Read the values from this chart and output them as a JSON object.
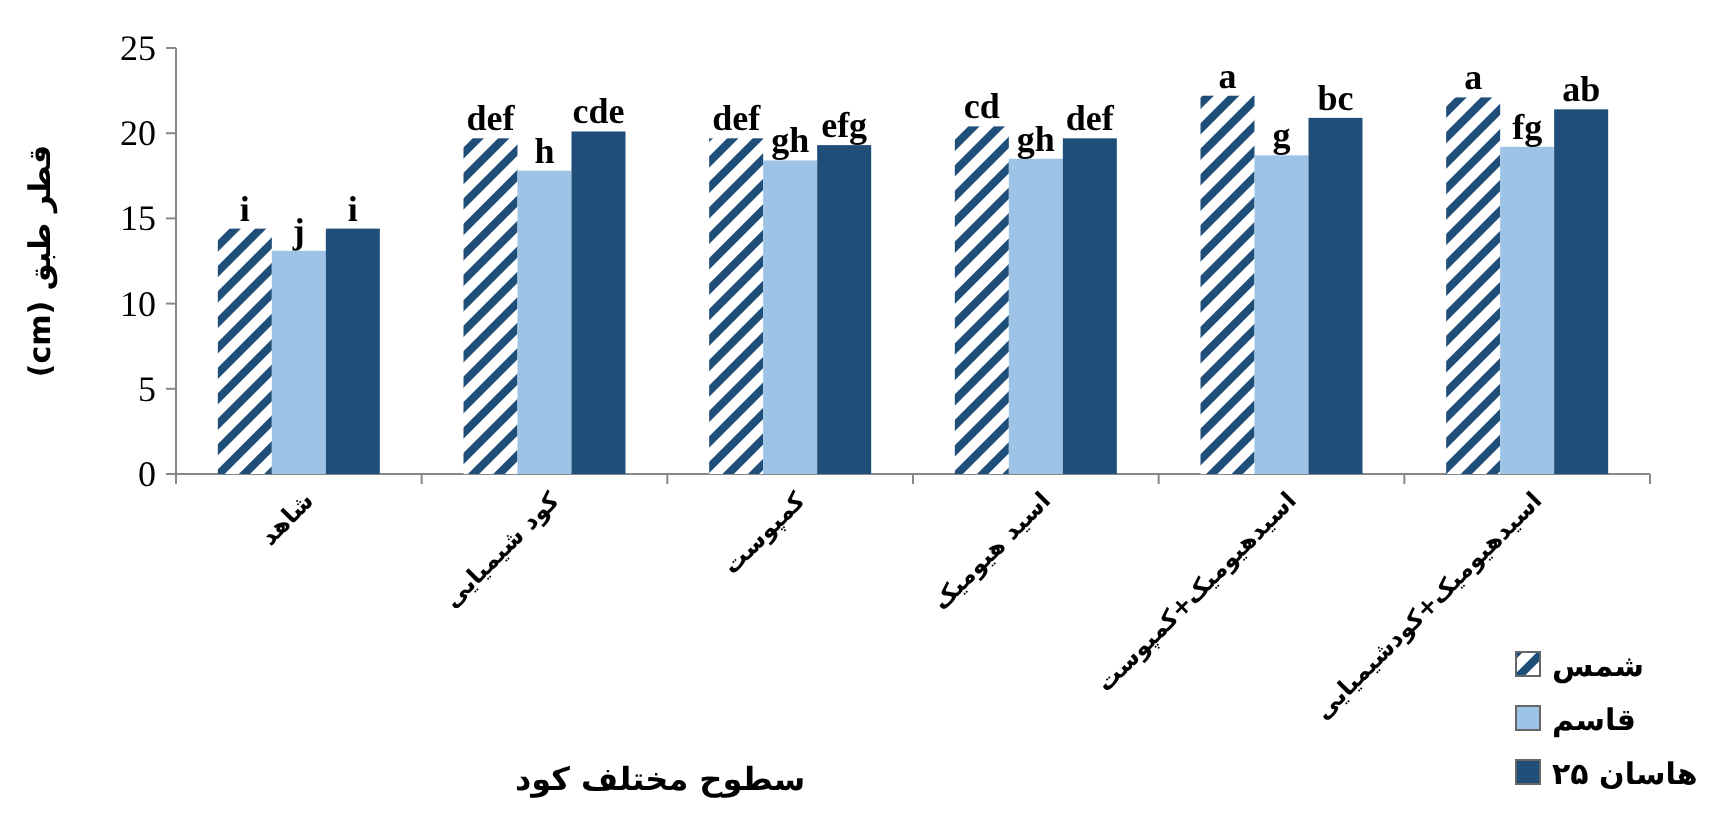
{
  "chart_data": {
    "type": "bar",
    "xlabel": "سطوح مختلف کود",
    "ylabel": "قطر طبق (cm)",
    "categories": [
      "شاهد",
      "کود شیمیایی",
      "کمپوست",
      "اسید هیومیک",
      "اسیدهیومیک+کمپوست",
      "اسیدهیومیک+کودشیمیایی"
    ],
    "ylim": [
      0,
      25
    ],
    "yticks": [
      0,
      5,
      10,
      15,
      20,
      25
    ],
    "legend": "bottom right",
    "grid": false,
    "series": [
      {
        "name": "شمس",
        "color": "#1f4e79",
        "values": [
          14.4,
          19.7,
          19.7,
          20.4,
          22.2,
          22.1
        ],
        "value_labels": [
          "i",
          "def",
          "def",
          "cd",
          "a",
          "a"
        ]
      },
      {
        "name": "قاسم",
        "color": "#9dc3e6",
        "values": [
          13.1,
          17.8,
          18.4,
          18.5,
          18.7,
          19.2
        ],
        "value_labels": [
          "j",
          "h",
          "gh",
          "gh",
          "g",
          "fg"
        ]
      },
      {
        "name": "هاسان ۲۵",
        "color": "#1f4e79",
        "values": [
          14.4,
          20.1,
          19.3,
          19.7,
          20.9,
          21.4
        ],
        "value_labels": [
          "i",
          "cde",
          "efg",
          "def",
          "bc",
          "ab"
        ]
      }
    ]
  }
}
